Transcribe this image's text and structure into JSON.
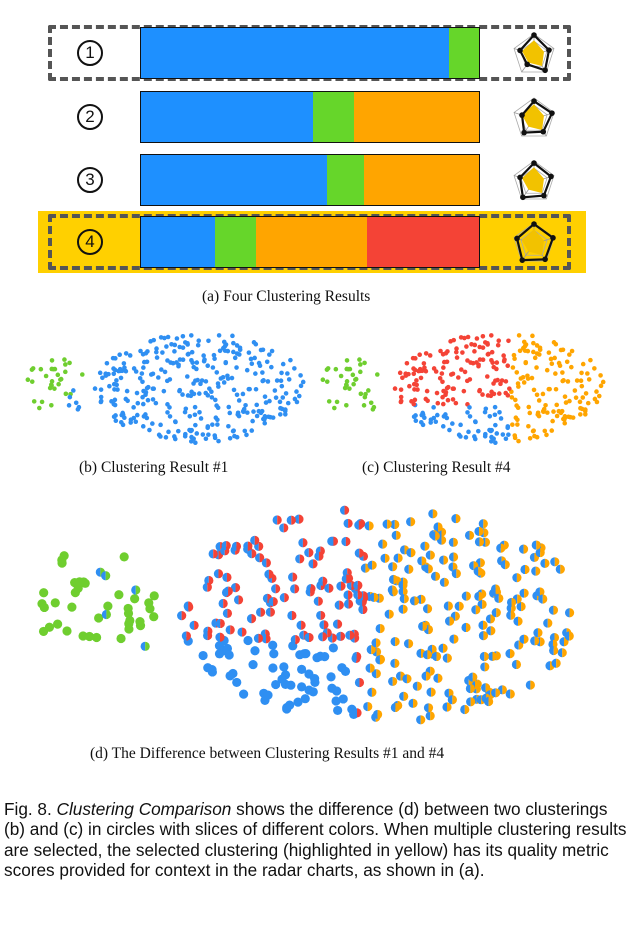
{
  "colors": {
    "blue": "#2f8ff2",
    "green": "#6fce2f",
    "orange": "#ffa500",
    "red": "#f44336",
    "highlight": "#ffd000",
    "radar_yellow": "#f2c200"
  },
  "rows": [
    {
      "label": "1",
      "segments": [
        0.91,
        0.09
      ],
      "colors": [
        "#1e90ff",
        "#66d62a"
      ],
      "highlighted": false,
      "dashed": true
    },
    {
      "label": "2",
      "segments": [
        0.51,
        0.12,
        0.37
      ],
      "colors": [
        "#1e90ff",
        "#66d62a",
        "#ffa500"
      ],
      "highlighted": false,
      "dashed": false
    },
    {
      "label": "3",
      "segments": [
        0.55,
        0.11,
        0.34
      ],
      "colors": [
        "#1e90ff",
        "#66d62a",
        "#ffa500"
      ],
      "highlighted": false,
      "dashed": false
    },
    {
      "label": "4",
      "segments": [
        0.22,
        0.12,
        0.33,
        0.33
      ],
      "colors": [
        "#1e90ff",
        "#66d62a",
        "#ffa500",
        "#f44336"
      ],
      "highlighted": true,
      "dashed": true
    }
  ],
  "captions": {
    "a": "(a)  Four Clustering Results",
    "b": "(b)  Clustering Result #1",
    "c": "(c)  Clustering Result #4",
    "d": "(d)  The Difference between Clustering Results #1 and #4"
  },
  "figure_caption": {
    "prefix": "Fig. 8.",
    "term": "Clustering Comparison",
    "body": " shows the difference (d) between two clusterings (b) and (c) in circles with slices of different colors. When multiple clustering results are selected, the selected clustering (highlighted in yellow) has its quality metric scores provided for context in the radar charts, as shown in (a)."
  }
}
